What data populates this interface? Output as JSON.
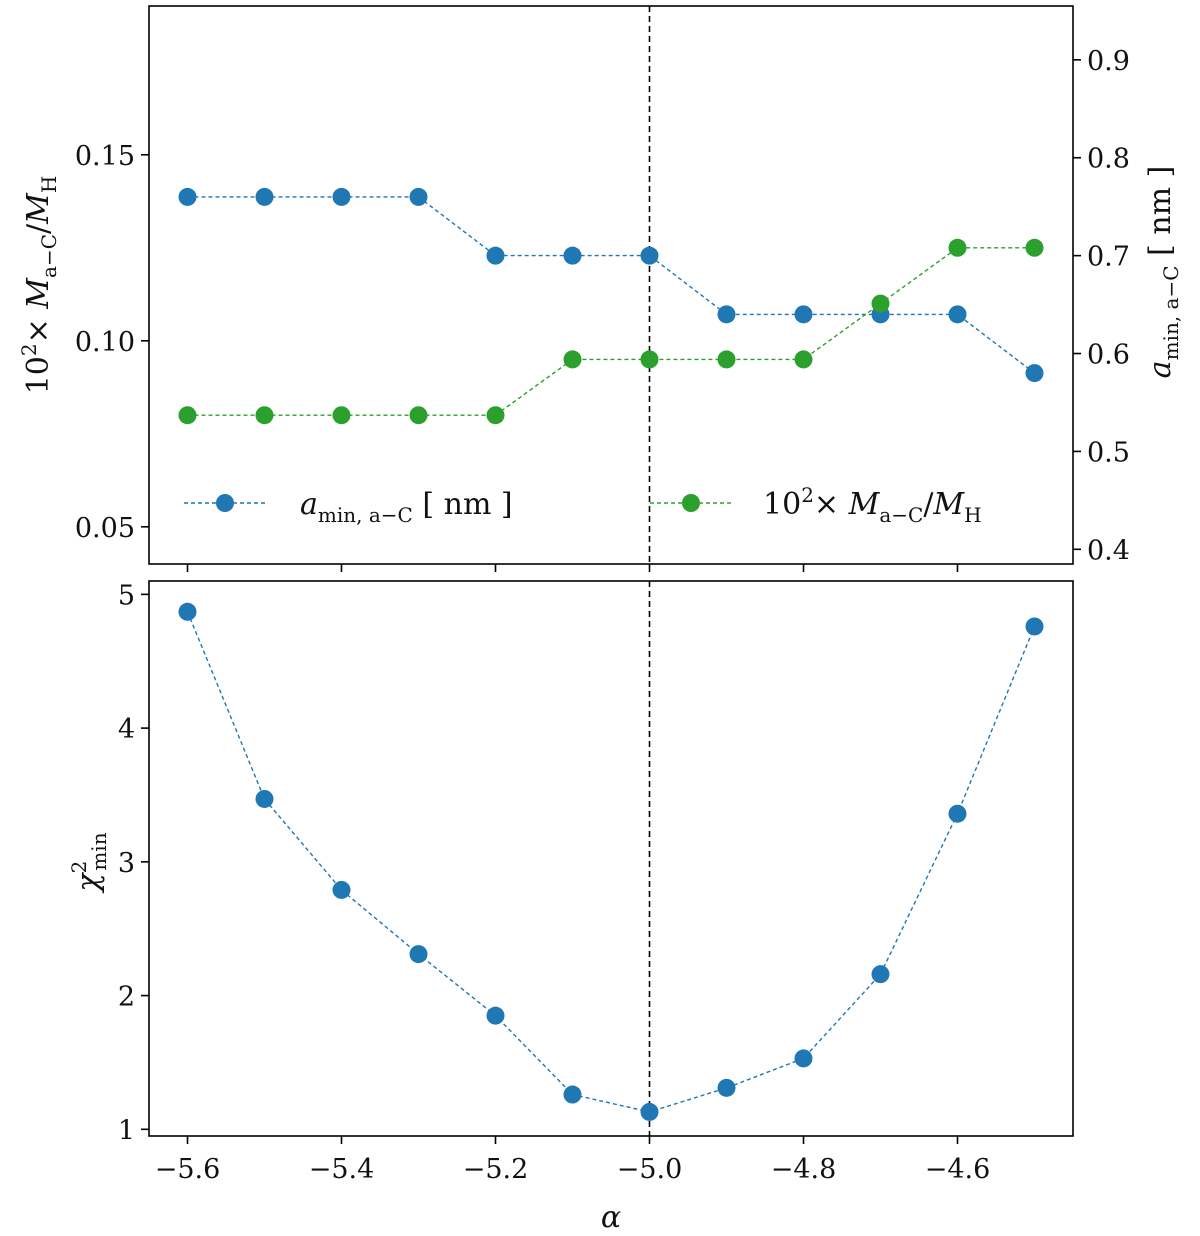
{
  "chart_data": [
    {
      "type": "line",
      "panel": "top",
      "x": [
        -5.6,
        -5.5,
        -5.4,
        -5.3,
        -5.2,
        -5.1,
        -5.0,
        -4.9,
        -4.8,
        -4.7,
        -4.6,
        -4.5
      ],
      "xlim": [
        -5.65,
        -4.45
      ],
      "ylabel": "10²× M_{a−C}/M_H",
      "ylim": [
        0.04,
        0.19
      ],
      "yticks": [
        "0.05",
        "0.10",
        "0.15"
      ],
      "y2label": "a_{min, a−C} [ nm ]",
      "y2lim": [
        0.385,
        0.955
      ],
      "y2ticks": [
        "0.4",
        "0.5",
        "0.6",
        "0.7",
        "0.8",
        "0.9"
      ],
      "vline_x": -5.0,
      "legend_position": "lower center, two columns",
      "series": [
        {
          "name": "a_{min, a−C} [ nm ]",
          "axis": "right",
          "color": "#1f77b4",
          "values": [
            0.76,
            0.76,
            0.76,
            0.76,
            0.7,
            0.7,
            0.7,
            0.64,
            0.64,
            0.64,
            0.64,
            0.58
          ]
        },
        {
          "name": "10²× M_{a−C}/M_H",
          "axis": "left",
          "color": "#2ca02c",
          "values": [
            0.08,
            0.08,
            0.08,
            0.08,
            0.08,
            0.095,
            0.095,
            0.095,
            0.095,
            0.11,
            0.125,
            0.125
          ]
        }
      ]
    },
    {
      "type": "line",
      "panel": "bottom",
      "x": [
        -5.6,
        -5.5,
        -5.4,
        -5.3,
        -5.2,
        -5.1,
        -5.0,
        -4.9,
        -4.8,
        -4.7,
        -4.6,
        -4.5
      ],
      "xlim": [
        -5.65,
        -4.45
      ],
      "xticks": [
        "−5.6",
        "−5.4",
        "−5.2",
        "−5.0",
        "−4.8",
        "−4.6"
      ],
      "xlabel": "α",
      "ylabel": "χ²_min",
      "ylim": [
        0.95,
        5.1
      ],
      "yticks": [
        "1",
        "2",
        "3",
        "4",
        "5"
      ],
      "vline_x": -5.0,
      "series": [
        {
          "color": "#1f77b4",
          "values": [
            4.87,
            3.47,
            2.79,
            2.31,
            1.85,
            1.26,
            1.13,
            1.31,
            1.53,
            2.16,
            3.36,
            4.76
          ]
        }
      ]
    }
  ]
}
